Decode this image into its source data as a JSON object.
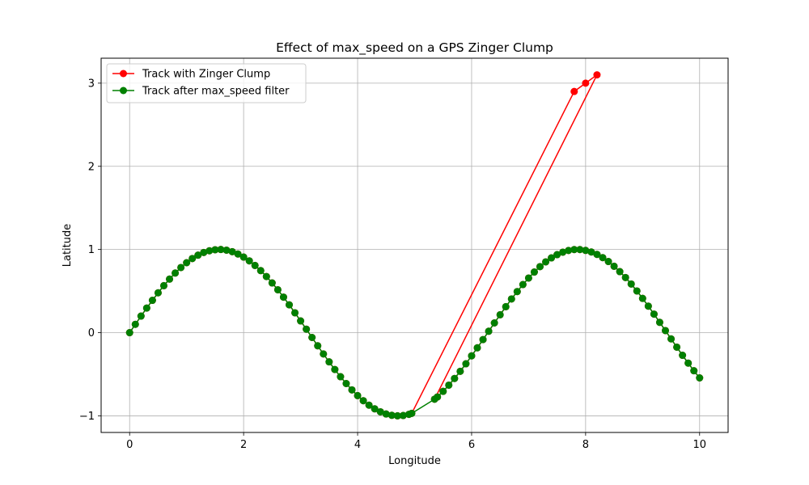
{
  "chart_data": {
    "type": "line",
    "title": "Effect of max_speed on a GPS Zinger Clump",
    "xlabel": "Longitude",
    "ylabel": "Latitude",
    "xlim": [
      -0.5,
      10.5
    ],
    "ylim": [
      -1.2,
      3.3
    ],
    "grid": true,
    "legend_position": "top-left",
    "x_ticks": [
      0,
      2,
      4,
      6,
      8,
      10
    ],
    "x_tick_labels": [
      "0",
      "2",
      "4",
      "6",
      "8",
      "10"
    ],
    "y_ticks": [
      -1,
      0,
      1,
      2,
      3
    ],
    "y_tick_labels": [
      "−1",
      "0",
      "1",
      "2",
      "3"
    ],
    "series": [
      {
        "name": "Track with Zinger Clump",
        "color": "#ff0000",
        "marker": "circle",
        "points": [
          [
            0,
            0
          ],
          [
            0.1,
            0.1
          ],
          [
            0.2,
            0.199
          ],
          [
            0.3,
            0.296
          ],
          [
            0.4,
            0.389
          ],
          [
            0.5,
            0.479
          ],
          [
            0.6,
            0.565
          ],
          [
            0.7,
            0.644
          ],
          [
            0.8,
            0.717
          ],
          [
            0.9,
            0.783
          ],
          [
            1.0,
            0.841
          ],
          [
            1.1,
            0.891
          ],
          [
            1.2,
            0.932
          ],
          [
            1.3,
            0.964
          ],
          [
            1.4,
            0.985
          ],
          [
            1.5,
            0.997
          ],
          [
            1.6,
            1.0
          ],
          [
            1.7,
            0.992
          ],
          [
            1.8,
            0.974
          ],
          [
            1.9,
            0.946
          ],
          [
            2.0,
            0.909
          ],
          [
            2.1,
            0.863
          ],
          [
            2.2,
            0.808
          ],
          [
            2.3,
            0.746
          ],
          [
            2.4,
            0.675
          ],
          [
            2.5,
            0.598
          ],
          [
            2.6,
            0.516
          ],
          [
            2.7,
            0.427
          ],
          [
            2.8,
            0.335
          ],
          [
            2.9,
            0.239
          ],
          [
            3.0,
            0.141
          ],
          [
            3.1,
            0.042
          ],
          [
            3.2,
            -0.058
          ],
          [
            3.3,
            -0.158
          ],
          [
            3.4,
            -0.256
          ],
          [
            3.5,
            -0.351
          ],
          [
            3.6,
            -0.443
          ],
          [
            3.7,
            -0.53
          ],
          [
            3.8,
            -0.612
          ],
          [
            3.9,
            -0.688
          ],
          [
            4.0,
            -0.757
          ],
          [
            4.1,
            -0.818
          ],
          [
            4.2,
            -0.872
          ],
          [
            4.3,
            -0.916
          ],
          [
            4.4,
            -0.952
          ],
          [
            4.5,
            -0.978
          ],
          [
            4.6,
            -0.994
          ],
          [
            4.7,
            -1.0
          ],
          [
            4.8,
            -0.996
          ],
          [
            4.9,
            -0.982
          ],
          [
            4.95,
            -0.97
          ],
          [
            7.8,
            2.9
          ],
          [
            8.0,
            3.0
          ],
          [
            8.2,
            3.1
          ],
          [
            5.35,
            -0.8
          ],
          [
            5.4,
            -0.773
          ],
          [
            5.5,
            -0.706
          ],
          [
            5.6,
            -0.631
          ],
          [
            5.7,
            -0.551
          ],
          [
            5.8,
            -0.465
          ],
          [
            5.9,
            -0.374
          ],
          [
            6.0,
            -0.279
          ],
          [
            6.1,
            -0.182
          ],
          [
            6.2,
            -0.083
          ],
          [
            6.3,
            0.017
          ],
          [
            6.4,
            0.117
          ],
          [
            6.5,
            0.215
          ],
          [
            6.6,
            0.312
          ],
          [
            6.7,
            0.405
          ],
          [
            6.8,
            0.494
          ],
          [
            6.9,
            0.578
          ],
          [
            7.0,
            0.657
          ],
          [
            7.1,
            0.729
          ],
          [
            7.2,
            0.794
          ],
          [
            7.3,
            0.851
          ],
          [
            7.4,
            0.899
          ],
          [
            7.5,
            0.938
          ],
          [
            7.6,
            0.968
          ],
          [
            7.7,
            0.988
          ],
          [
            7.8,
            0.999
          ],
          [
            7.9,
            0.999
          ],
          [
            8.0,
            0.989
          ],
          [
            8.1,
            0.97
          ],
          [
            8.2,
            0.941
          ],
          [
            8.3,
            0.902
          ],
          [
            8.4,
            0.855
          ],
          [
            8.5,
            0.798
          ],
          [
            8.6,
            0.734
          ],
          [
            8.7,
            0.663
          ],
          [
            8.8,
            0.585
          ],
          [
            8.9,
            0.501
          ],
          [
            9.0,
            0.412
          ],
          [
            9.1,
            0.319
          ],
          [
            9.2,
            0.223
          ],
          [
            9.3,
            0.124
          ],
          [
            9.4,
            0.025
          ],
          [
            9.5,
            -0.075
          ],
          [
            9.6,
            -0.174
          ],
          [
            9.7,
            -0.272
          ],
          [
            9.8,
            -0.366
          ],
          [
            9.9,
            -0.458
          ],
          [
            10.0,
            -0.544
          ]
        ]
      },
      {
        "name": "Track after max_speed filter",
        "color": "#008000",
        "marker": "circle",
        "points": [
          [
            0,
            0
          ],
          [
            0.1,
            0.1
          ],
          [
            0.2,
            0.199
          ],
          [
            0.3,
            0.296
          ],
          [
            0.4,
            0.389
          ],
          [
            0.5,
            0.479
          ],
          [
            0.6,
            0.565
          ],
          [
            0.7,
            0.644
          ],
          [
            0.8,
            0.717
          ],
          [
            0.9,
            0.783
          ],
          [
            1.0,
            0.841
          ],
          [
            1.1,
            0.891
          ],
          [
            1.2,
            0.932
          ],
          [
            1.3,
            0.964
          ],
          [
            1.4,
            0.985
          ],
          [
            1.5,
            0.997
          ],
          [
            1.6,
            1.0
          ],
          [
            1.7,
            0.992
          ],
          [
            1.8,
            0.974
          ],
          [
            1.9,
            0.946
          ],
          [
            2.0,
            0.909
          ],
          [
            2.1,
            0.863
          ],
          [
            2.2,
            0.808
          ],
          [
            2.3,
            0.746
          ],
          [
            2.4,
            0.675
          ],
          [
            2.5,
            0.598
          ],
          [
            2.6,
            0.516
          ],
          [
            2.7,
            0.427
          ],
          [
            2.8,
            0.335
          ],
          [
            2.9,
            0.239
          ],
          [
            3.0,
            0.141
          ],
          [
            3.1,
            0.042
          ],
          [
            3.2,
            -0.058
          ],
          [
            3.3,
            -0.158
          ],
          [
            3.4,
            -0.256
          ],
          [
            3.5,
            -0.351
          ],
          [
            3.6,
            -0.443
          ],
          [
            3.7,
            -0.53
          ],
          [
            3.8,
            -0.612
          ],
          [
            3.9,
            -0.688
          ],
          [
            4.0,
            -0.757
          ],
          [
            4.1,
            -0.818
          ],
          [
            4.2,
            -0.872
          ],
          [
            4.3,
            -0.916
          ],
          [
            4.4,
            -0.952
          ],
          [
            4.5,
            -0.978
          ],
          [
            4.6,
            -0.994
          ],
          [
            4.7,
            -1.0
          ],
          [
            4.8,
            -0.996
          ],
          [
            4.9,
            -0.982
          ],
          [
            4.95,
            -0.97
          ],
          [
            5.35,
            -0.8
          ],
          [
            5.4,
            -0.773
          ],
          [
            5.5,
            -0.706
          ],
          [
            5.6,
            -0.631
          ],
          [
            5.7,
            -0.551
          ],
          [
            5.8,
            -0.465
          ],
          [
            5.9,
            -0.374
          ],
          [
            6.0,
            -0.279
          ],
          [
            6.1,
            -0.182
          ],
          [
            6.2,
            -0.083
          ],
          [
            6.3,
            0.017
          ],
          [
            6.4,
            0.117
          ],
          [
            6.5,
            0.215
          ],
          [
            6.6,
            0.312
          ],
          [
            6.7,
            0.405
          ],
          [
            6.8,
            0.494
          ],
          [
            6.9,
            0.578
          ],
          [
            7.0,
            0.657
          ],
          [
            7.1,
            0.729
          ],
          [
            7.2,
            0.794
          ],
          [
            7.3,
            0.851
          ],
          [
            7.4,
            0.899
          ],
          [
            7.5,
            0.938
          ],
          [
            7.6,
            0.968
          ],
          [
            7.7,
            0.988
          ],
          [
            7.8,
            0.999
          ],
          [
            7.9,
            0.999
          ],
          [
            8.0,
            0.989
          ],
          [
            8.1,
            0.97
          ],
          [
            8.2,
            0.941
          ],
          [
            8.3,
            0.902
          ],
          [
            8.4,
            0.855
          ],
          [
            8.5,
            0.798
          ],
          [
            8.6,
            0.734
          ],
          [
            8.7,
            0.663
          ],
          [
            8.8,
            0.585
          ],
          [
            8.9,
            0.501
          ],
          [
            9.0,
            0.412
          ],
          [
            9.1,
            0.319
          ],
          [
            9.2,
            0.223
          ],
          [
            9.3,
            0.124
          ],
          [
            9.4,
            0.025
          ],
          [
            9.5,
            -0.075
          ],
          [
            9.6,
            -0.174
          ],
          [
            9.7,
            -0.272
          ],
          [
            9.8,
            -0.366
          ],
          [
            9.9,
            -0.458
          ],
          [
            10.0,
            -0.544
          ]
        ]
      }
    ]
  }
}
